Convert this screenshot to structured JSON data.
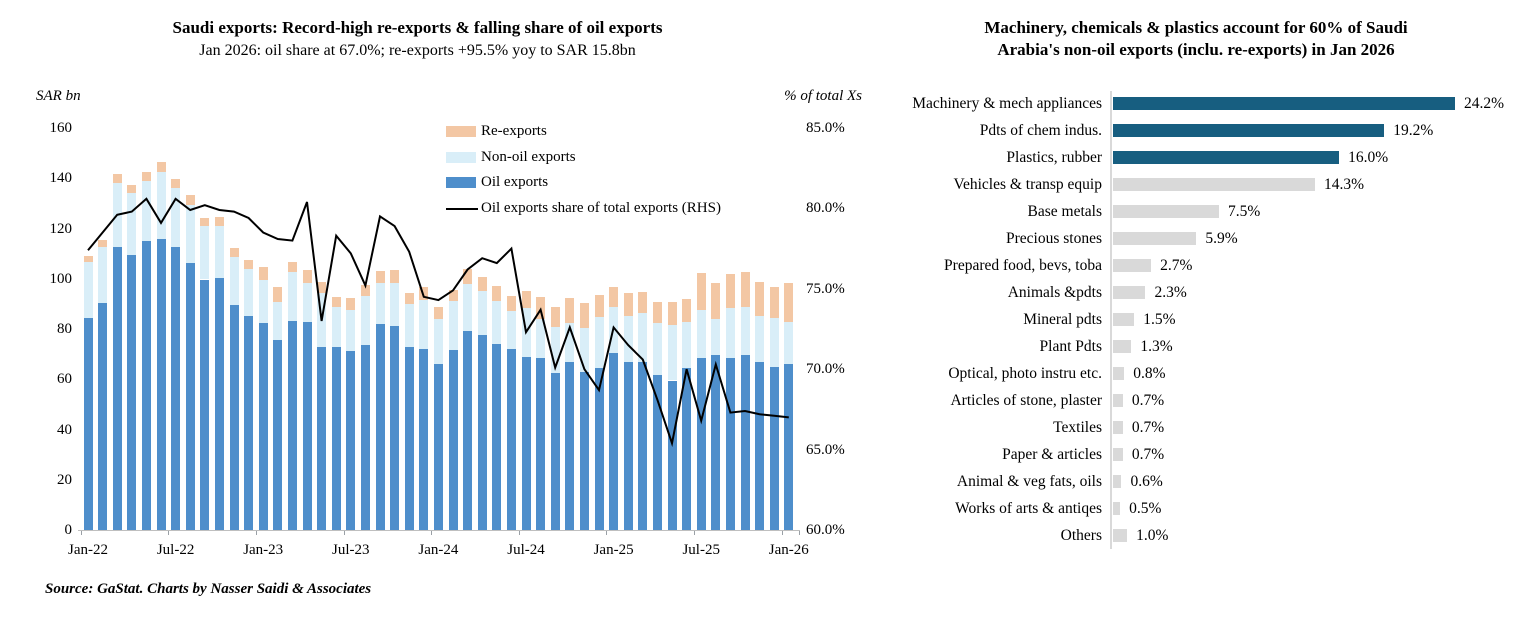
{
  "source_note": "Source: GaStat. Charts by Nasser Saidi & Associates",
  "colors": {
    "oil_bar": "#4E8ECB",
    "non_oil_bar": "#D9EEF8",
    "re_export_bar": "#F3C7A4",
    "share_line": "#000000",
    "teal_highlight": "#175E80",
    "gray_bar": "#D9D9D9",
    "axis_gray": "#BFBFBF"
  },
  "chart_data": [
    {
      "type": "bar",
      "subtype": "stacked-bars-with-rhs-line",
      "title": "Saudi exports: Record-high re-exports & falling share of oil exports",
      "subtitle": "Jan 2026: oil share at 67.0%; re-exports +95.5% yoy to SAR 15.8bn",
      "y_left_label": "SAR bn",
      "y_right_label": "% of total Xs",
      "y_left_ticks": [
        0,
        20,
        40,
        60,
        80,
        100,
        120,
        140,
        160
      ],
      "y_left_range": [
        0,
        160
      ],
      "y_right_ticks": [
        60,
        65,
        70,
        75,
        80,
        85
      ],
      "y_right_range": [
        60,
        85
      ],
      "grid": false,
      "legend_position": "top-center-inside",
      "legend": [
        "Re-exports",
        "Non-oil exports",
        "Oil exports",
        "Oil exports share of total exports (RHS)"
      ],
      "x_tick_labels": [
        "Jan-22",
        "Jul-22",
        "Jan-23",
        "Jul-23",
        "Jan-24",
        "Jul-24",
        "Jan-25",
        "Jul-25",
        "Jan-26"
      ],
      "x": [
        "Jan-22",
        "Feb-22",
        "Mar-22",
        "Apr-22",
        "May-22",
        "Jun-22",
        "Jul-22",
        "Aug-22",
        "Sep-22",
        "Oct-22",
        "Nov-22",
        "Dec-22",
        "Jan-23",
        "Feb-23",
        "Mar-23",
        "Apr-23",
        "May-23",
        "Jun-23",
        "Jul-23",
        "Aug-23",
        "Sep-23",
        "Oct-23",
        "Nov-23",
        "Dec-23",
        "Jan-24",
        "Feb-24",
        "Mar-24",
        "Apr-24",
        "May-24",
        "Jun-24",
        "Jul-24",
        "Aug-24",
        "Sep-24",
        "Oct-24",
        "Nov-24",
        "Dec-24",
        "Jan-25",
        "Feb-25",
        "Mar-25",
        "Apr-25",
        "May-25",
        "Jun-25",
        "Jul-25",
        "Aug-25",
        "Sep-25",
        "Oct-25",
        "Nov-25",
        "Dec-25",
        "Jan-26"
      ],
      "series": [
        {
          "name": "Oil exports",
          "render": "bar-stack",
          "stack_order": 1,
          "axis": "left",
          "values": [
            84.2,
            90.5,
            112.6,
            109.6,
            114.9,
            115.7,
            112.7,
            106.4,
            99.7,
            100.1,
            89.5,
            85.1,
            82.2,
            75.6,
            83.3,
            82.9,
            72.7,
            73.0,
            71.2,
            73.5,
            82.0,
            81.2,
            73.0,
            71.9,
            66.0,
            71.5,
            79.3,
            77.5,
            74.0,
            72.0,
            69.0,
            68.5,
            62.3,
            67.0,
            63.0,
            64.3,
            70.3,
            67.0,
            67.0,
            61.7,
            59.5,
            64.3,
            68.3,
            69.7,
            68.6,
            69.7,
            67.0,
            65.0,
            66.0
          ]
        },
        {
          "name": "Non-oil exports",
          "render": "bar-stack",
          "stack_order": 2,
          "axis": "left",
          "values": [
            22.6,
            22.0,
            25.4,
            24.4,
            24.1,
            26.8,
            23.3,
            23.1,
            21.1,
            20.9,
            19.0,
            18.9,
            17.5,
            15.3,
            19.2,
            15.5,
            21.8,
            15.6,
            16.3,
            19.5,
            16.5,
            17.3,
            17.0,
            19.6,
            17.8,
            19.7,
            18.8,
            17.7,
            17.0,
            15.0,
            19.5,
            15.5,
            18.6,
            15.3,
            17.3,
            20.6,
            18.3,
            18.2,
            19.2,
            20.6,
            22.1,
            18.3,
            19.3,
            14.3,
            19.6,
            19.2,
            18.3,
            19.2,
            16.7
          ]
        },
        {
          "name": "Re-exports",
          "render": "bar-stack",
          "stack_order": 3,
          "axis": "left",
          "values": [
            2.4,
            2.9,
            3.5,
            3.3,
            3.6,
            4.1,
            3.7,
            3.8,
            3.5,
            3.7,
            3.6,
            3.4,
            5.1,
            5.9,
            4.3,
            5.1,
            4.3,
            4.3,
            4.7,
            4.5,
            4.5,
            4.8,
            4.5,
            5.3,
            5.0,
            4.3,
            5.9,
            5.6,
            6.0,
            6.0,
            6.5,
            8.9,
            8.0,
            9.9,
            9.9,
            8.6,
            8.2,
            9.0,
            8.7,
            8.6,
            9.3,
            9.2,
            14.6,
            14.4,
            13.7,
            13.9,
            13.5,
            12.4,
            15.8
          ]
        },
        {
          "name": "Oil exports share of total exports (RHS)",
          "render": "line",
          "axis": "right",
          "values": [
            77.4,
            78.5,
            79.6,
            79.8,
            80.6,
            79.1,
            80.6,
            79.9,
            80.2,
            79.9,
            79.8,
            79.4,
            78.5,
            78.1,
            78.0,
            80.4,
            73.0,
            78.3,
            77.2,
            75.2,
            79.5,
            78.9,
            77.3,
            74.5,
            74.3,
            74.9,
            76.2,
            76.9,
            76.6,
            77.5,
            72.3,
            73.7,
            70.1,
            72.6,
            70.0,
            68.7,
            72.6,
            71.5,
            70.6,
            68.1,
            65.4,
            70.0,
            66.8,
            70.3,
            67.3,
            67.4,
            67.2,
            67.1,
            67.0
          ]
        }
      ]
    },
    {
      "type": "bar",
      "orientation": "horizontal",
      "title": "Machinery, chemicals & plastics account for 60% of Saudi Arabia's non-oil exports (inclu. re-exports) in Jan 2026",
      "title_lines": [
        "Machinery, chemicals & plastics account for 60% of Saudi",
        "Arabia's non-oil exports (inclu. re-exports) in Jan 2026"
      ],
      "value_suffix": "%",
      "highlight_count": 3,
      "xlim": [
        0,
        25
      ],
      "categories": [
        "Machinery & mech appliances",
        "Pdts of chem indus.",
        "Plastics, rubber",
        "Vehicles & transp equip",
        "Base metals",
        "Precious stones",
        "Prepared food, bevs, toba",
        "Animals &pdts",
        "Mineral pdts",
        "Plant Pdts",
        "Optical, photo instru etc.",
        "Articles of stone, plaster",
        "Textiles",
        "Paper & articles",
        "Animal & veg fats, oils",
        "Works of arts & antiqes",
        "Others"
      ],
      "values": [
        24.2,
        19.2,
        16.0,
        14.3,
        7.5,
        5.9,
        2.7,
        2.3,
        1.5,
        1.3,
        0.8,
        0.7,
        0.7,
        0.7,
        0.6,
        0.5,
        1.0
      ],
      "value_labels": [
        "24.2%",
        "19.2%",
        "16.0%",
        "14.3%",
        "7.5%",
        "5.9%",
        "2.7%",
        "2.3%",
        "1.5%",
        "1.3%",
        "0.8%",
        "0.7%",
        "0.7%",
        "0.7%",
        "0.6%",
        "0.5%",
        "1.0%"
      ]
    }
  ]
}
